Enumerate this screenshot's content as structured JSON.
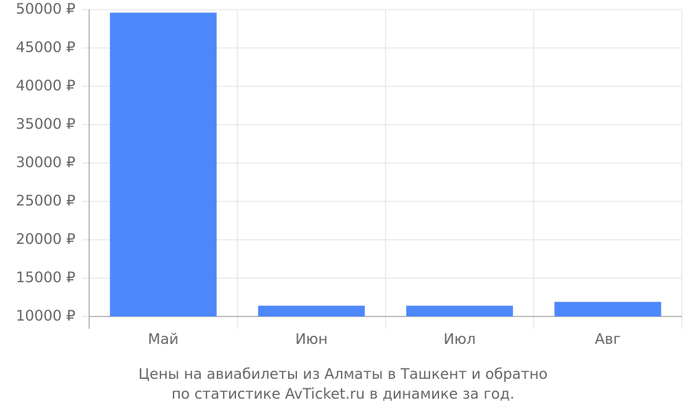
{
  "chart_data": {
    "type": "bar",
    "categories": [
      "Май",
      "Июн",
      "Июл",
      "Авг"
    ],
    "values": [
      49600,
      11400,
      11400,
      11900
    ],
    "color": "#4d88fb",
    "ylim": [
      10000,
      50000
    ],
    "yticks": [
      {
        "value": 10000,
        "label": "10000 ₽"
      },
      {
        "value": 15000,
        "label": "15000 ₽"
      },
      {
        "value": 20000,
        "label": "20000 ₽"
      },
      {
        "value": 25000,
        "label": "25000 ₽"
      },
      {
        "value": 30000,
        "label": "30000 ₽"
      },
      {
        "value": 35000,
        "label": "35000 ₽"
      },
      {
        "value": 40000,
        "label": "40000 ₽"
      },
      {
        "value": 45000,
        "label": "45000 ₽"
      },
      {
        "value": 50000,
        "label": "50000 ₽"
      }
    ],
    "grid": true,
    "caption": [
      "Цены на авиабилеты из Алматы в Ташкент и обратно",
      "по статистике AvTicket.ru в динамике за год."
    ]
  }
}
